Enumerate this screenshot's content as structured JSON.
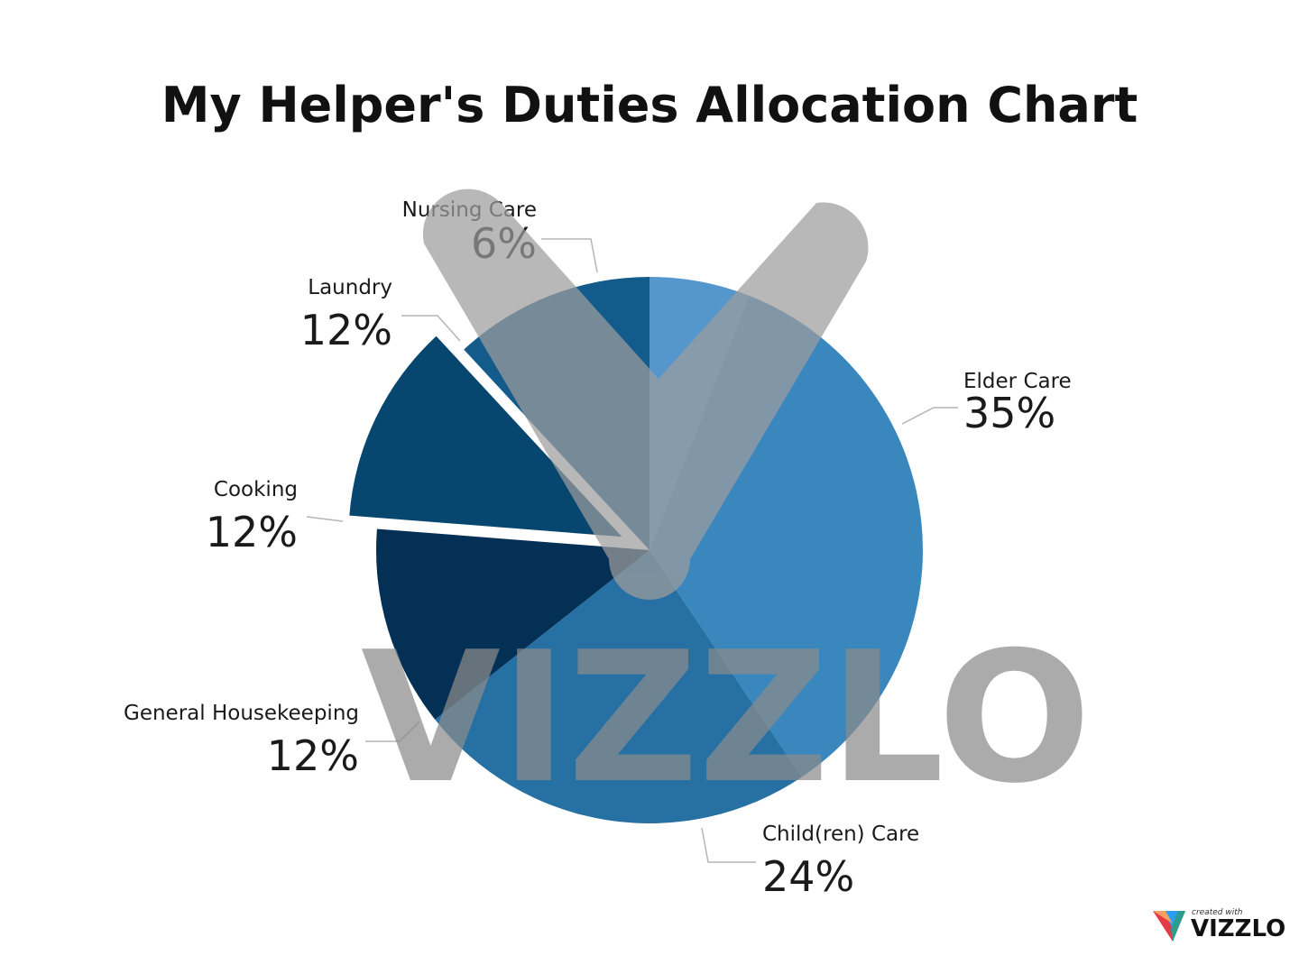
{
  "chart_data": {
    "type": "pie",
    "title": "My Helper's Duties Allocation Chart",
    "categories": [
      "Nursing Care",
      "Elder Care",
      "Child(ren) Care",
      "General Housekeeping",
      "Cooking",
      "Laundry"
    ],
    "values": [
      6,
      35,
      24,
      12,
      12,
      12
    ],
    "value_labels": [
      "6%",
      "35%",
      "24%",
      "12%",
      "12%",
      "12%"
    ],
    "colors": [
      "#5596cc",
      "#3a87bd",
      "#2770a3",
      "#053055",
      "#07476f",
      "#125b8b"
    ],
    "exploded": "Cooking",
    "legend": "none"
  },
  "watermark": {
    "text": "VIZZLO"
  },
  "branding": {
    "tagline": "created with",
    "name": "VIZZLO",
    "icon": "vizzlo-logo-icon"
  }
}
